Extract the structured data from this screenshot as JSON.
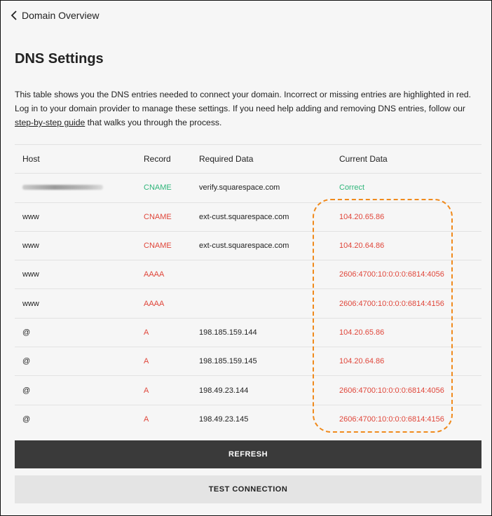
{
  "nav": {
    "back_label": "Domain Overview"
  },
  "page": {
    "title": "DNS Settings",
    "description_before_link": "This table shows you the DNS entries needed to connect your domain. Incorrect or missing entries are highlighted in red. Log in to your domain provider to manage these settings. If you need help adding and removing DNS entries, follow our ",
    "link_text": "step-by-step guide",
    "description_after_link": " that walks you through the process."
  },
  "table": {
    "headers": [
      "Host",
      "Record",
      "Required Data",
      "Current Data"
    ],
    "rows": [
      {
        "host": "",
        "host_redacted": true,
        "record": "CNAME",
        "required": "verify.squarespace.com",
        "current": "Correct",
        "status": "ok"
      },
      {
        "host": "www",
        "record": "CNAME",
        "required": "ext-cust.squarespace.com",
        "current": "104.20.65.86",
        "status": "error"
      },
      {
        "host": "www",
        "record": "CNAME",
        "required": "ext-cust.squarespace.com",
        "current": "104.20.64.86",
        "status": "error"
      },
      {
        "host": "www",
        "record": "AAAA",
        "required": "",
        "current": "2606:4700:10:0:0:0:6814:4056",
        "status": "error"
      },
      {
        "host": "www",
        "record": "AAAA",
        "required": "",
        "current": "2606:4700:10:0:0:0:6814:4156",
        "status": "error"
      },
      {
        "host": "@",
        "record": "A",
        "required": "198.185.159.144",
        "current": "104.20.65.86",
        "status": "error"
      },
      {
        "host": "@",
        "record": "A",
        "required": "198.185.159.145",
        "current": "104.20.64.86",
        "status": "error"
      },
      {
        "host": "@",
        "record": "A",
        "required": "198.49.23.144",
        "current": "2606:4700:10:0:0:0:6814:4056",
        "status": "error"
      },
      {
        "host": "@",
        "record": "A",
        "required": "198.49.23.145",
        "current": "2606:4700:10:0:0:0:6814:4156",
        "status": "error"
      }
    ]
  },
  "buttons": {
    "refresh": "REFRESH",
    "test_connection": "TEST CONNECTION"
  },
  "colors": {
    "error": "#e0463a",
    "ok": "#2fb57a",
    "highlight": "#f08a1c"
  }
}
